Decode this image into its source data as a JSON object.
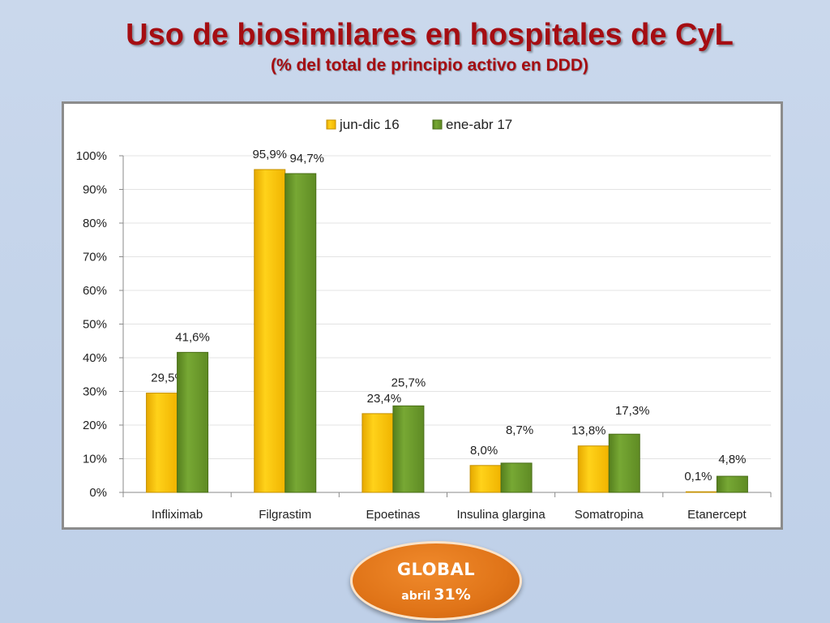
{
  "slide": {
    "title": "Uso de biosimilares en hospitales de CyL",
    "subtitle": "(% del total de principio activo en DDD)"
  },
  "badge": {
    "label": "GLOBAL",
    "period": "abril",
    "value": "31%",
    "color": "#e07418"
  },
  "chart_data": {
    "type": "bar",
    "categories": [
      "Infliximab",
      "Filgrastim",
      "Epoetinas",
      "Insulina glargina",
      "Somatropina",
      "Etanercept"
    ],
    "series": [
      {
        "name": "jun-dic 16",
        "values": [
          29.5,
          95.9,
          23.4,
          8.0,
          13.8,
          0.1
        ],
        "labels": [
          "29,5%",
          "95,9%",
          "23,4%",
          "8,0%",
          "13,8%",
          "0,1%"
        ],
        "color": "#ffc000"
      },
      {
        "name": "ene-abr 17",
        "values": [
          41.6,
          94.7,
          25.7,
          8.7,
          17.3,
          4.8
        ],
        "labels": [
          "41,6%",
          "94,7%",
          "25,7%",
          "8,7%",
          "17,3%",
          "4,8%"
        ],
        "color": "#6b9a2c"
      }
    ],
    "yticks": [
      "0%",
      "10%",
      "20%",
      "30%",
      "40%",
      "50%",
      "60%",
      "70%",
      "80%",
      "90%",
      "100%"
    ],
    "ylim": [
      0,
      100
    ],
    "grid": true,
    "legend": "top"
  }
}
